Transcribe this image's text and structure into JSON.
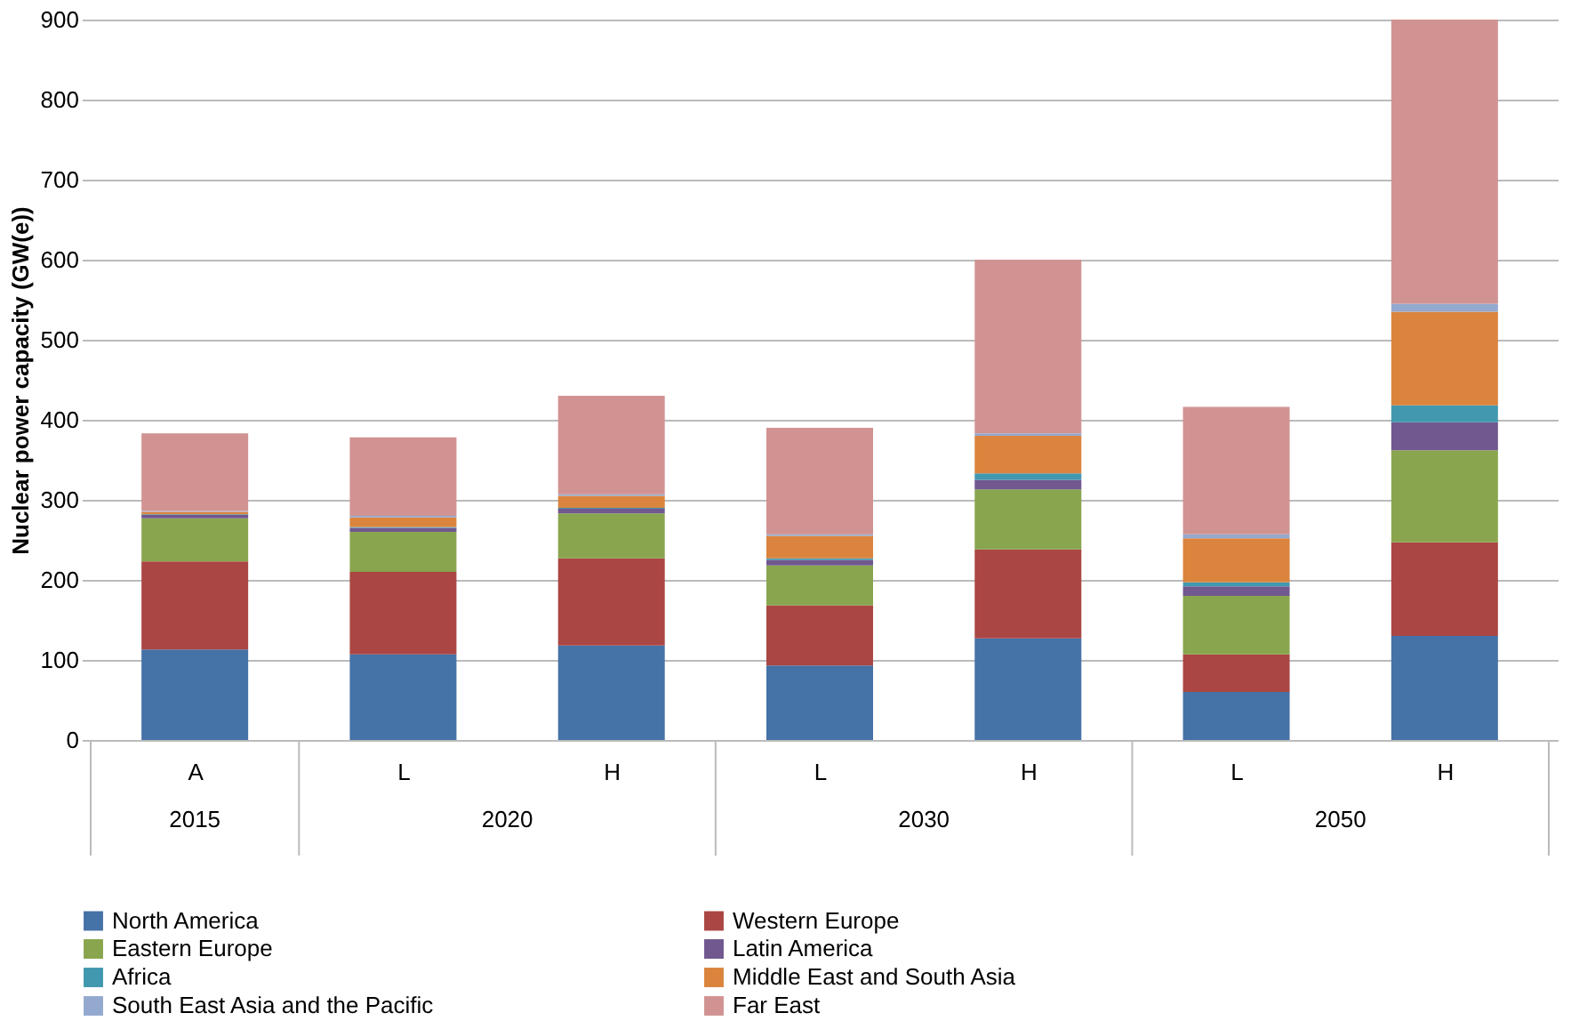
{
  "chart_data": {
    "type": "bar",
    "stacked": true,
    "ylabel": "Nuclear power capacity (GW(e))",
    "categories": [
      "A",
      "L",
      "H",
      "L",
      "H",
      "L",
      "H"
    ],
    "annotations": [
      "2015",
      "2020",
      "2030",
      "2050"
    ],
    "ylim": [
      0,
      900
    ],
    "yticks": [
      0,
      100,
      200,
      300,
      400,
      500,
      600,
      700,
      800,
      900
    ],
    "grid": "y",
    "legend": "bottom",
    "series": [
      {
        "name": "North America",
        "color": "#4572a7",
        "values": [
          113,
          107,
          118,
          93,
          127,
          60,
          130
        ]
      },
      {
        "name": "Western Europe",
        "color": "#aa4643",
        "values": [
          110,
          103,
          109,
          75,
          111,
          47,
          117
        ]
      },
      {
        "name": "Eastern Europe",
        "color": "#89a54e",
        "values": [
          54,
          50,
          56,
          50,
          75,
          73,
          115
        ]
      },
      {
        "name": "Latin America",
        "color": "#71588f",
        "values": [
          4,
          5,
          6,
          7,
          12,
          12,
          35
        ]
      },
      {
        "name": "Africa",
        "color": "#4198af",
        "values": [
          1,
          1,
          1,
          2,
          8,
          5,
          21
        ]
      },
      {
        "name": "Middle East and South Asia",
        "color": "#db843d",
        "values": [
          3,
          12,
          15,
          28,
          47,
          55,
          117
        ]
      },
      {
        "name": "South East Asia and the Pacific",
        "color": "#93a9cf",
        "values": [
          1,
          2,
          2,
          2,
          3,
          5,
          10
        ]
      },
      {
        "name": "Far East",
        "color": "#d19392",
        "values": [
          97,
          98,
          123,
          133,
          217,
          159,
          355
        ]
      }
    ]
  }
}
